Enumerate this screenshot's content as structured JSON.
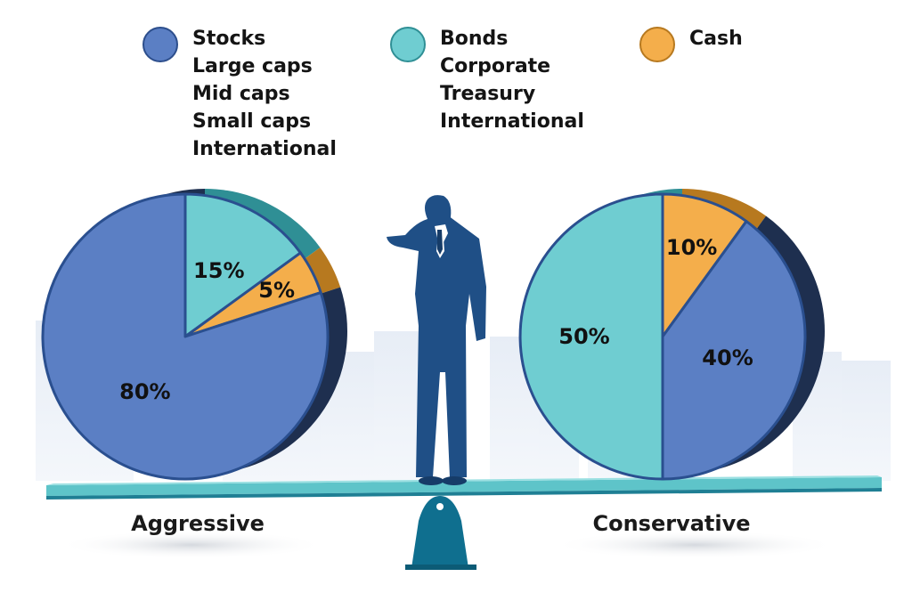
{
  "colors": {
    "stocks": "#5b7fc4",
    "stocks_dark": "#2c4e8c",
    "bonds": "#6fcdd1",
    "bonds_dark": "#2f8f95",
    "cash": "#f4ae4b",
    "cash_dark": "#b7791f",
    "beam": "#5ec4c9",
    "fulcrum": "#0f6f8f",
    "figure": "#1f4f86"
  },
  "legend": [
    {
      "key": "stocks",
      "name": "Stocks",
      "subitems": [
        "Large caps",
        "Mid caps",
        "Small caps",
        "International"
      ]
    },
    {
      "key": "bonds",
      "name": "Bonds",
      "subitems": [
        "Corporate",
        "Treasury",
        "International"
      ]
    },
    {
      "key": "cash",
      "name": "Cash",
      "subitems": []
    }
  ],
  "chart_data": [
    {
      "type": "pie",
      "title": "Aggressive",
      "slices": [
        {
          "name": "Bonds",
          "value": 15,
          "label": "15%",
          "color": "#6fcdd1"
        },
        {
          "name": "Cash",
          "value": 5,
          "label": "5%",
          "color": "#f4ae4b"
        },
        {
          "name": "Stocks",
          "value": 80,
          "label": "80%",
          "color": "#5b7fc4"
        }
      ]
    },
    {
      "type": "pie",
      "title": "Conservative",
      "slices": [
        {
          "name": "Cash",
          "value": 10,
          "label": "10%",
          "color": "#f4ae4b"
        },
        {
          "name": "Stocks",
          "value": 40,
          "label": "40%",
          "color": "#5b7fc4"
        },
        {
          "name": "Bonds",
          "value": 50,
          "label": "50%",
          "color": "#6fcdd1"
        }
      ]
    }
  ]
}
